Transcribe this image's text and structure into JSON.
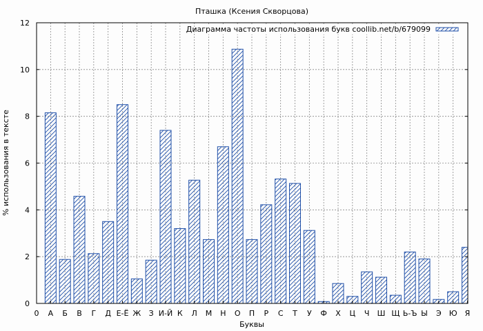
{
  "chart_data": {
    "type": "bar",
    "title": "Пташка (Ксения Скворцова)",
    "xlabel": "Буквы",
    "ylabel": "% использования в тексте",
    "ylim": [
      0,
      12
    ],
    "yticks": [
      0,
      2,
      4,
      6,
      8,
      10,
      12
    ],
    "x_zero_label": "0",
    "grid": true,
    "legend_position": "top-right",
    "colors": {
      "bar_stroke": "#1f4fa8",
      "hatch": "#1f4fa8",
      "grid": "#888888",
      "background": "#fdfdfd"
    },
    "categories": [
      "А",
      "Б",
      "В",
      "Г",
      "Д",
      "Е-Ё",
      "Ж",
      "З",
      "И-Й",
      "К",
      "Л",
      "М",
      "Н",
      "О",
      "П",
      "Р",
      "С",
      "Т",
      "У",
      "Ф",
      "Х",
      "Ц",
      "Ч",
      "Ш",
      "Щ",
      "Ь-Ъ",
      "Ы",
      "Э",
      "Ю",
      "Я"
    ],
    "series": [
      {
        "name": "Диаграмма частоты использования букв coollib.net/b/679099",
        "values": [
          8.15,
          1.88,
          4.58,
          2.13,
          3.5,
          8.5,
          1.05,
          1.85,
          7.4,
          3.2,
          5.27,
          2.73,
          6.7,
          10.87,
          2.73,
          4.22,
          5.32,
          5.13,
          3.12,
          0.08,
          0.85,
          0.3,
          1.35,
          1.12,
          0.35,
          2.2,
          1.9,
          0.17,
          0.5,
          2.4
        ]
      }
    ]
  }
}
